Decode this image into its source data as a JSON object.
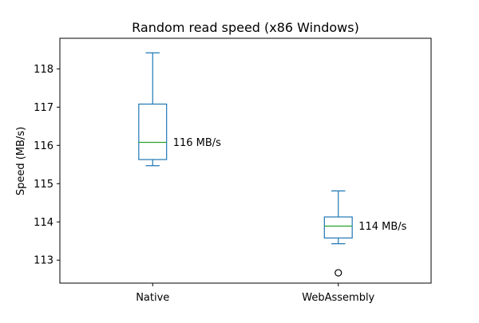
{
  "chart_data": {
    "type": "box",
    "title": "Random read speed (x86 Windows)",
    "xlabel": "",
    "ylabel": "Speed (MB/s)",
    "ylim": [
      112.4,
      118.8
    ],
    "yticks": [
      113,
      114,
      115,
      116,
      117,
      118
    ],
    "grid": false,
    "categories": [
      "Native",
      "WebAssembly"
    ],
    "boxes": [
      {
        "category": "Native",
        "whisker_low": 115.47,
        "q1": 115.63,
        "median": 116.08,
        "q3": 117.08,
        "whisker_high": 118.42,
        "outliers": [],
        "label": "116 MB/s"
      },
      {
        "category": "WebAssembly",
        "whisker_low": 113.43,
        "q1": 113.58,
        "median": 113.89,
        "q3": 114.13,
        "whisker_high": 114.81,
        "outliers": [
          112.67
        ],
        "label": "114 MB/s"
      }
    ],
    "colors": {
      "box": "#1f77b4",
      "median": "#2ca02c",
      "flier": "#000000",
      "axis": "#000000"
    }
  }
}
